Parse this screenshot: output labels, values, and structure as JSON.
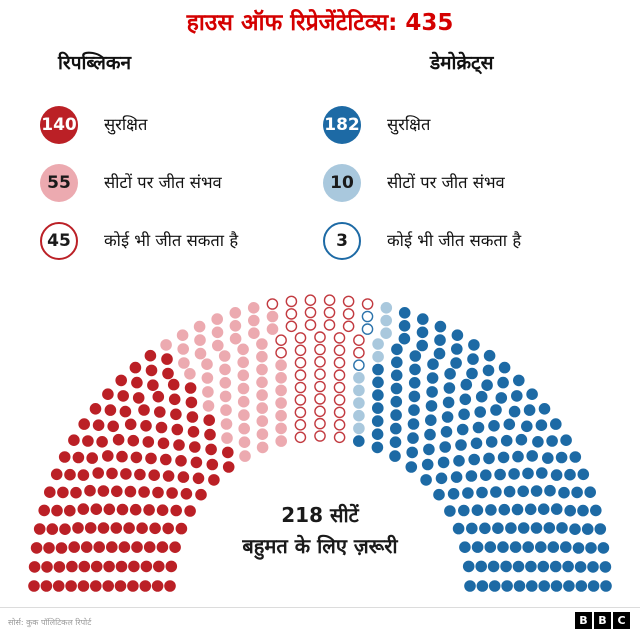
{
  "title": "हाउस ऑफ रिप्रेजेंटेटिव्स: 435",
  "colors": {
    "title_red": "#d40000",
    "republican_safe": "#bb2026",
    "republican_lean": "#ecaab0",
    "democrat_safe": "#1d6aa5",
    "democrat_lean": "#a9c8dd",
    "tossup_white": "#ffffff"
  },
  "legend": {
    "republicans": {
      "header": "रिपब्लिकन",
      "items": [
        {
          "value": "140",
          "label": "सुरक्षित"
        },
        {
          "value": "55",
          "label": "सीटों पर जीत संभव"
        },
        {
          "value": "45",
          "label": "कोई भी जीत सकता है"
        }
      ]
    },
    "democrats": {
      "header": "डेमोक्रेट्स",
      "items": [
        {
          "value": "182",
          "label": "सुरक्षित"
        },
        {
          "value": "10",
          "label": "सीटों पर जीत संभव"
        },
        {
          "value": "3",
          "label": "कोई भी जीत सकता है"
        }
      ]
    }
  },
  "chart_data": {
    "type": "parliament",
    "total_seats": 435,
    "rows": 12,
    "majority_label_line1": "218 सीटें",
    "majority_label_line2": "बहुमत के लिए ज़रूरी",
    "series": [
      {
        "name": "republican-safe",
        "seats": 140,
        "fill": "#bb2026",
        "stroke": "#bb2026"
      },
      {
        "name": "republican-lean",
        "seats": 55,
        "fill": "#ecaab0",
        "stroke": "#ecaab0"
      },
      {
        "name": "republican-tossup",
        "seats": 45,
        "fill": "#ffffff",
        "stroke": "#c23a40"
      },
      {
        "name": "democrat-tossup",
        "seats": 3,
        "fill": "#ffffff",
        "stroke": "#2c73ab"
      },
      {
        "name": "democrat-lean",
        "seats": 10,
        "fill": "#a9c8dd",
        "stroke": "#a9c8dd"
      },
      {
        "name": "democrat-safe",
        "seats": 182,
        "fill": "#1d6aa5",
        "stroke": "#1d6aa5"
      }
    ]
  },
  "footer": {
    "source": "सोर्स: कुक पॉलिटिकल रिपोर्ट",
    "logo_letters": [
      "B",
      "B",
      "C"
    ]
  }
}
